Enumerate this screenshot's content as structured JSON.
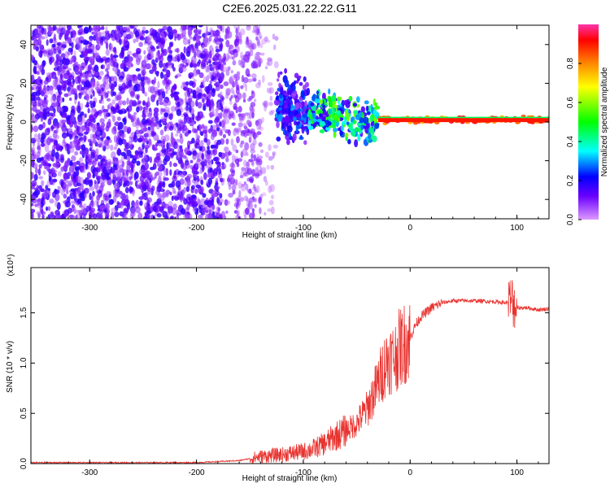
{
  "title": "C2E6.2025.031.22.22.G11",
  "colors": {
    "snr_line": "#e8332f",
    "spectrogram_noise": "#7a2ee6",
    "colorbar": [
      "#cc66ff",
      "#0000ff",
      "#00ffff",
      "#00ff00",
      "#ffff00",
      "#ff8800",
      "#ff0000",
      "#ff33aa"
    ]
  },
  "colorbar": {
    "label": "Normalized spectral amplitude",
    "ticks": [
      "0.0",
      "0.2",
      "0.4",
      "0.6",
      "0.8"
    ],
    "tick_values": [
      0.0,
      0.2,
      0.4,
      0.6,
      0.8
    ],
    "range": [
      0,
      1
    ]
  },
  "chart_data": [
    {
      "type": "heatmap",
      "xlabel": "Height of straight line (km)",
      "ylabel": "Frequency (Hz)",
      "xlim": [
        -355,
        130
      ],
      "ylim": [
        -50,
        50
      ],
      "x_ticks": [
        -300,
        -200,
        -100,
        0,
        100
      ],
      "x_tick_labels": [
        "-300",
        "-200",
        "-100",
        "0",
        "100"
      ],
      "y_ticks": [
        -40,
        -20,
        0,
        20,
        40
      ],
      "y_tick_labels": [
        "-40",
        "-20",
        "0",
        "20",
        "40"
      ],
      "colorbar_range": [
        0,
        1
      ],
      "regions": [
        {
          "x": [
            -355,
            -175
          ],
          "freq": [
            -50,
            50
          ],
          "amplitude": 0.12
        },
        {
          "x": [
            -175,
            -140
          ],
          "freq": [
            -50,
            50
          ],
          "amplitude": 0.08
        },
        {
          "x": [
            -140,
            -125
          ],
          "freq": [
            -50,
            50
          ],
          "amplitude": 0.04
        },
        {
          "x": [
            -125,
            -95
          ],
          "freq": [
            -15,
            25
          ],
          "amplitude": 0.2
        },
        {
          "x": [
            -95,
            -30
          ],
          "freq": [
            -10,
            15
          ],
          "amplitude": 0.4
        },
        {
          "x": [
            -30,
            130
          ],
          "freq": [
            -1,
            3
          ],
          "amplitude": 0.9
        }
      ],
      "signal_center_freq": [
        {
          "x": -130,
          "y": 10
        },
        {
          "x": -110,
          "y": 7
        },
        {
          "x": -90,
          "y": 6
        },
        {
          "x": -70,
          "y": 4
        },
        {
          "x": -50,
          "y": 1
        },
        {
          "x": -30,
          "y": 1
        },
        {
          "x": 0,
          "y": 1
        },
        {
          "x": 50,
          "y": 1
        },
        {
          "x": 100,
          "y": 1
        },
        {
          "x": 130,
          "y": 1
        }
      ]
    },
    {
      "type": "line",
      "xlabel": "Height of straight line (km)",
      "ylabel": "SNR (10 * v/v)",
      "y_multiplier": "(x10⁴)",
      "xlim": [
        -355,
        130
      ],
      "ylim": [
        0,
        1.95
      ],
      "x_ticks": [
        -300,
        -200,
        -100,
        0,
        100
      ],
      "x_tick_labels": [
        "-300",
        "-200",
        "-100",
        "0",
        "100"
      ],
      "y_ticks": [
        0,
        0.5,
        1.0,
        1.5
      ],
      "y_tick_labels": [
        "0.0",
        "0.5",
        "1.0",
        "1.5"
      ],
      "series": [
        {
          "x": [
            -355,
            -300,
            -250,
            -200,
            -180,
            -160,
            -150,
            -140,
            -120,
            -100,
            -90,
            -80,
            -70,
            -60,
            -50,
            -40,
            -30,
            -25,
            -20,
            -15,
            -10,
            -5,
            0,
            5,
            10,
            20,
            30,
            40,
            60,
            80,
            90,
            95,
            100,
            110,
            120,
            130
          ],
          "y": [
            0.01,
            0.01,
            0.01,
            0.01,
            0.02,
            0.03,
            0.05,
            0.07,
            0.09,
            0.12,
            0.15,
            0.2,
            0.27,
            0.33,
            0.4,
            0.55,
            0.8,
            0.95,
            1.05,
            1.05,
            1.15,
            1.2,
            1.25,
            1.38,
            1.46,
            1.55,
            1.6,
            1.62,
            1.62,
            1.61,
            1.6,
            1.62,
            1.55,
            1.55,
            1.53,
            1.54
          ]
        }
      ]
    }
  ]
}
